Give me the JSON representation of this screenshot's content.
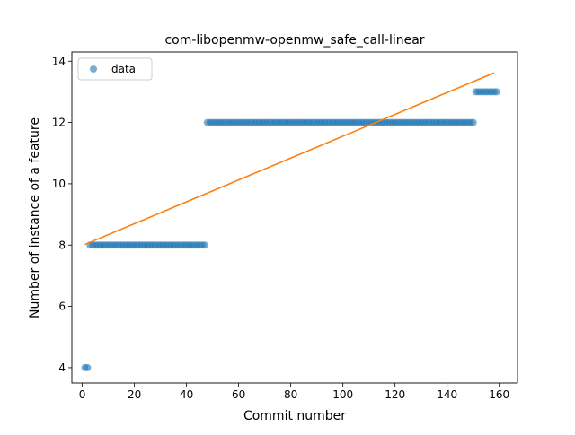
{
  "chart_data": {
    "type": "scatter",
    "title": "com-libopenmw-openmw_safe_call-linear",
    "xlabel": "Commit number",
    "ylabel": "Number of instance of a feature",
    "xlim": [
      -4,
      167
    ],
    "ylim": [
      3.5,
      14.3
    ],
    "xticks": [
      0,
      20,
      40,
      60,
      80,
      100,
      120,
      140,
      160
    ],
    "yticks": [
      4,
      6,
      8,
      10,
      12,
      14
    ],
    "grid": false,
    "legend_position": "upper-left",
    "series": [
      {
        "name": "data",
        "kind": "points",
        "color": "#1f77b4",
        "segments": [
          {
            "x_from": 1,
            "x_to": 2,
            "y": 4
          },
          {
            "x_from": 3,
            "x_to": 47,
            "y": 8
          },
          {
            "x_from": 48,
            "x_to": 150,
            "y": 12
          },
          {
            "x_from": 151,
            "x_to": 159,
            "y": 13
          }
        ]
      },
      {
        "name": "",
        "kind": "line",
        "color": "#ff7f0e",
        "points": [
          [
            1,
            8.02
          ],
          [
            158,
            13.62
          ]
        ]
      }
    ]
  }
}
